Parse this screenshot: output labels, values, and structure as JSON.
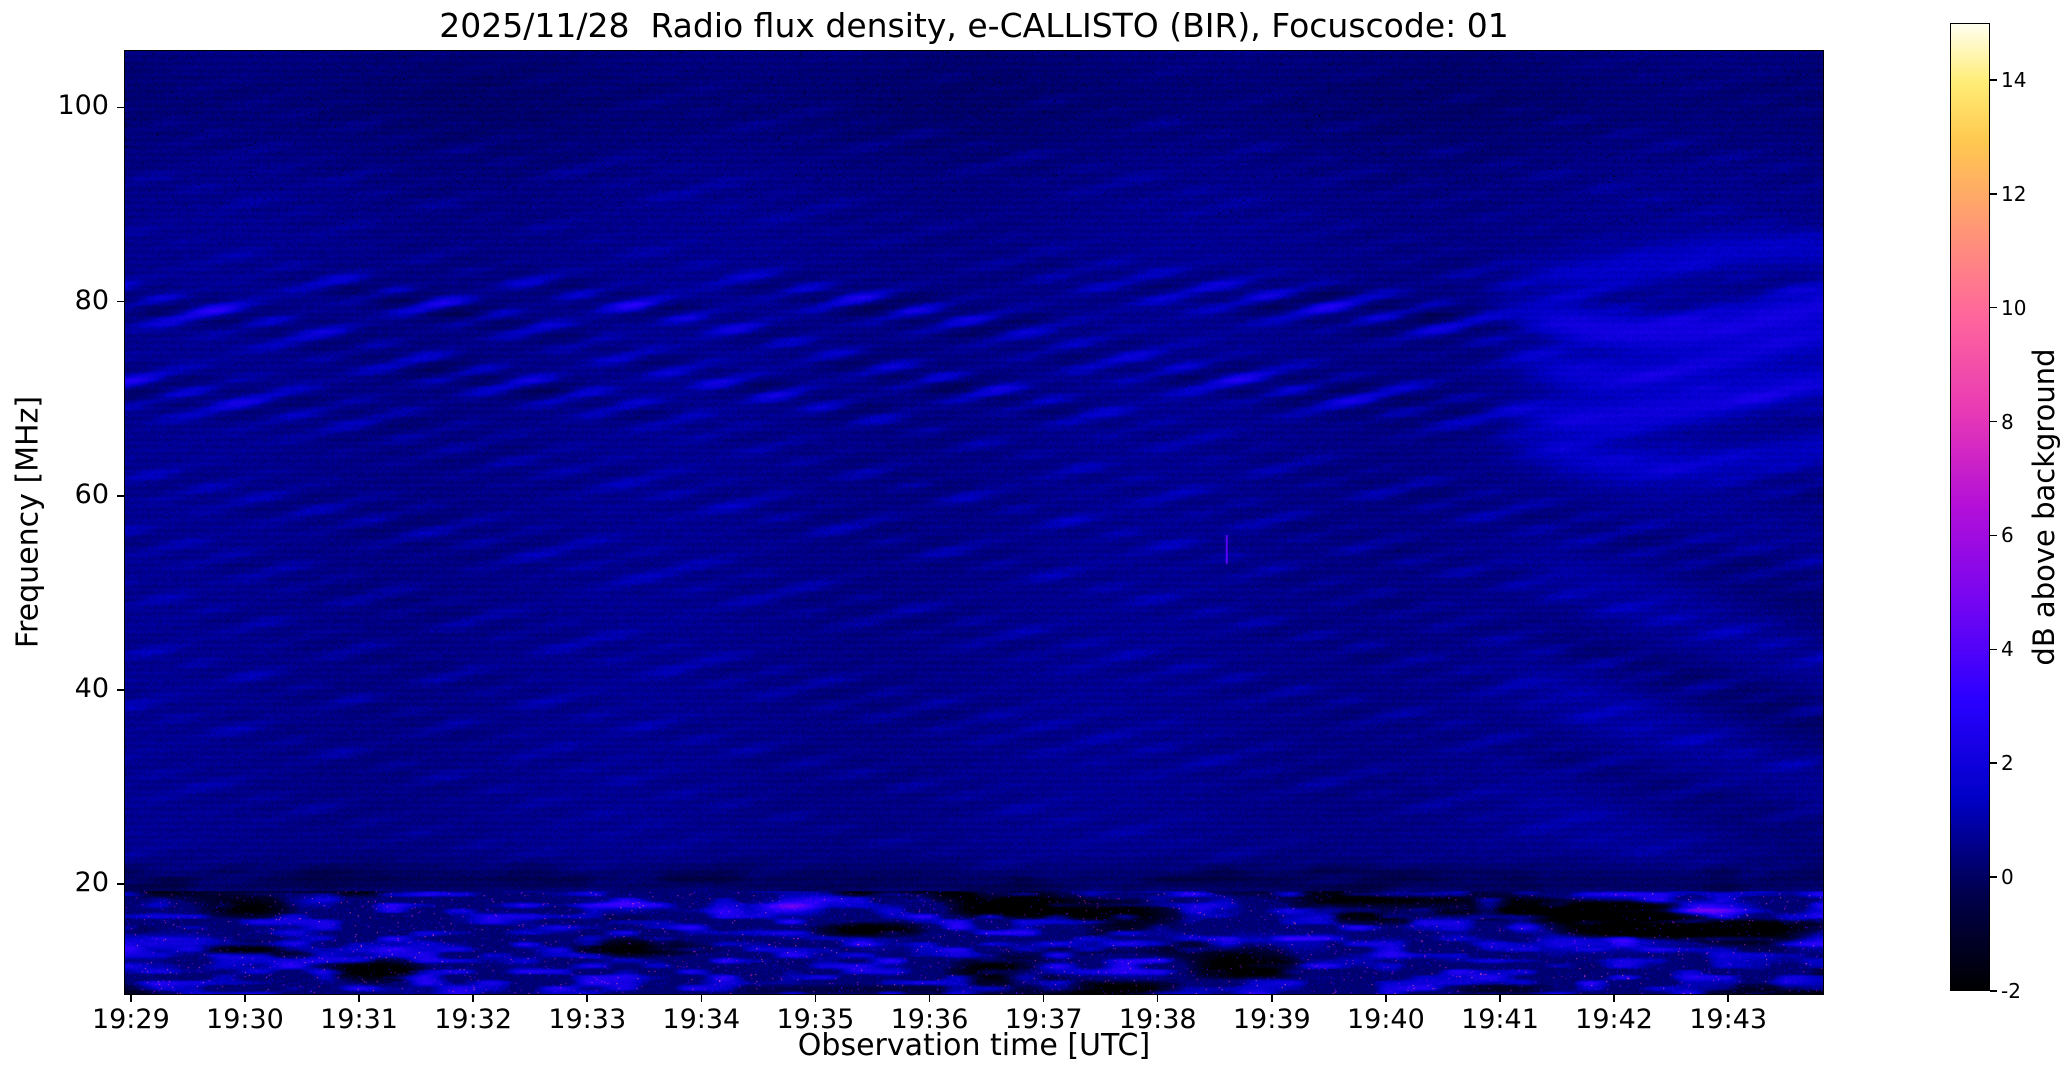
{
  "figure": {
    "background": "#ffffff"
  },
  "chart_data": {
    "type": "heatmap",
    "title": "2025/11/28  Radio flux density, e-CALLISTO (BIR), Focuscode: 01",
    "date": "2025/11/28",
    "instrument": "e-CALLISTO (BIR)",
    "focuscode": "01",
    "xlabel": "Observation time [UTC]",
    "ylabel": "Frequency [MHz]",
    "x_axis": {
      "tick_labels": [
        "19:29",
        "19:30",
        "19:31",
        "19:32",
        "19:33",
        "19:34",
        "19:35",
        "19:36",
        "19:37",
        "19:38",
        "19:39",
        "19:40",
        "19:41",
        "19:42",
        "19:43"
      ],
      "lim_minutes": [
        -0.06,
        14.84
      ]
    },
    "y_axis": {
      "tick_values": [
        20,
        40,
        60,
        80,
        100
      ],
      "lim_mhz": [
        8.6,
        105.9
      ]
    },
    "colorbar": {
      "label": "dB above background",
      "tick_values": [
        -2,
        0,
        2,
        4,
        6,
        8,
        10,
        12,
        14
      ],
      "lim_db": [
        -2,
        15
      ],
      "colormap": "gnuplot2-like (black-blue-violet-magenta-pink-yellow-white)",
      "stops": [
        {
          "pos": 0.0,
          "color": "#000000"
        },
        {
          "pos": 0.1,
          "color": "#00004d"
        },
        {
          "pos": 0.2,
          "color": "#0000c8"
        },
        {
          "pos": 0.3,
          "color": "#2a00ff"
        },
        {
          "pos": 0.4,
          "color": "#7405f2"
        },
        {
          "pos": 0.5,
          "color": "#b30fd8"
        },
        {
          "pos": 0.6,
          "color": "#e93ab4"
        },
        {
          "pos": 0.7,
          "color": "#ff679b"
        },
        {
          "pos": 0.8,
          "color": "#ff9d70"
        },
        {
          "pos": 0.88,
          "color": "#ffc94f"
        },
        {
          "pos": 0.94,
          "color": "#ffed77"
        },
        {
          "pos": 1.0,
          "color": "#fffff0"
        }
      ]
    },
    "features": [
      "Background level around 0-1 dB above background (dark navy blue) over the whole dynamic spectrum",
      "Strong diagonal interference fringe pattern (bright blue stripes sloping down to the right) concentrated in two bands near 79 MHz and 71 MHz",
      "Fainter diagonal ripple texture across roughly 20-60 MHz and above 85 MHz",
      "After about 19:41 the fringes turn into wavy quasi-horizontal bands between ~65 and ~85 MHz with curved ripples below",
      "Broadband noisy band below ~18 MHz with bright blue blobs, scattered magenta/pink speckles and black dropout patches",
      "Intermittent bright horizontal streak near 17.5 MHz and a fainter one near 14 MHz",
      "Dark lane with black blotches around 19-21 MHz",
      "Small isolated pink vertical dash near 19:38.6 at ~55 MHz"
    ]
  }
}
